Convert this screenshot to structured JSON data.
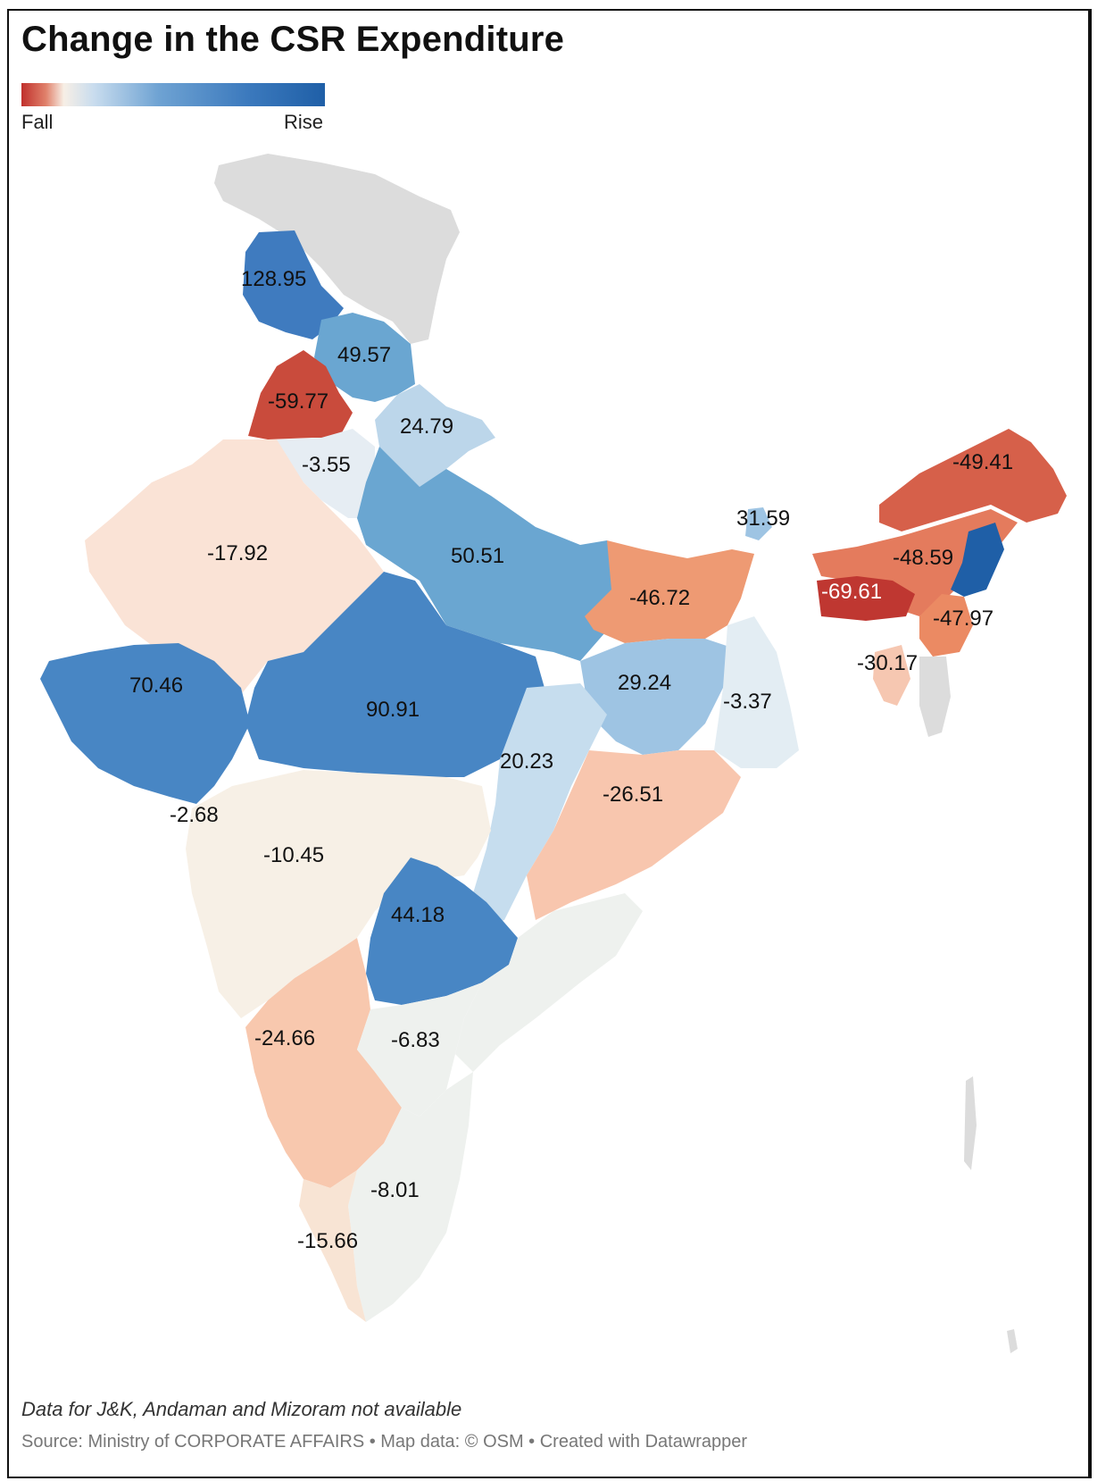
{
  "title": "Change in the CSR Expenditure",
  "legend": {
    "low_label": "Fall",
    "high_label": "Rise",
    "colors": [
      "#c0302c",
      "#f7efe6",
      "#1f5fa7"
    ]
  },
  "note": "Data for J&K, Andaman and Mizoram not available",
  "source": "Source: Ministry of CORPORATE AFFAIRS • Map data: © OSM • Created with Datawrapper",
  "chart_data": {
    "type": "heatmap",
    "title": "Change in the CSR Expenditure",
    "values": [
      {
        "label": "128.95",
        "value": 128.95
      },
      {
        "label": "49.57",
        "value": 49.57
      },
      {
        "label": "-59.77",
        "value": -59.77
      },
      {
        "label": "24.79",
        "value": 24.79
      },
      {
        "label": "-3.55",
        "value": -3.55
      },
      {
        "label": "-17.92",
        "value": -17.92
      },
      {
        "label": "50.51",
        "value": 50.51
      },
      {
        "label": "-46.72",
        "value": -46.72
      },
      {
        "label": "31.59",
        "value": 31.59
      },
      {
        "label": "-49.41",
        "value": -49.41
      },
      {
        "label": "-48.59",
        "value": -48.59
      },
      {
        "label": "-69.61",
        "value": -69.61
      },
      {
        "label": "-47.97",
        "value": -47.97
      },
      {
        "label": "-30.17",
        "value": -30.17
      },
      {
        "label": "70.46",
        "value": 70.46
      },
      {
        "label": "90.91",
        "value": 90.91
      },
      {
        "label": "29.24",
        "value": 29.24
      },
      {
        "label": "-3.37",
        "value": -3.37
      },
      {
        "label": "20.23",
        "value": 20.23
      },
      {
        "label": "-26.51",
        "value": -26.51
      },
      {
        "label": "-2.68",
        "value": -2.68
      },
      {
        "label": "-10.45",
        "value": -10.45
      },
      {
        "label": "44.18",
        "value": 44.18
      },
      {
        "label": "-24.66",
        "value": -24.66
      },
      {
        "label": "-6.83",
        "value": -6.83
      },
      {
        "label": "-8.01",
        "value": -8.01
      },
      {
        "label": "-15.66",
        "value": -15.66
      }
    ]
  }
}
